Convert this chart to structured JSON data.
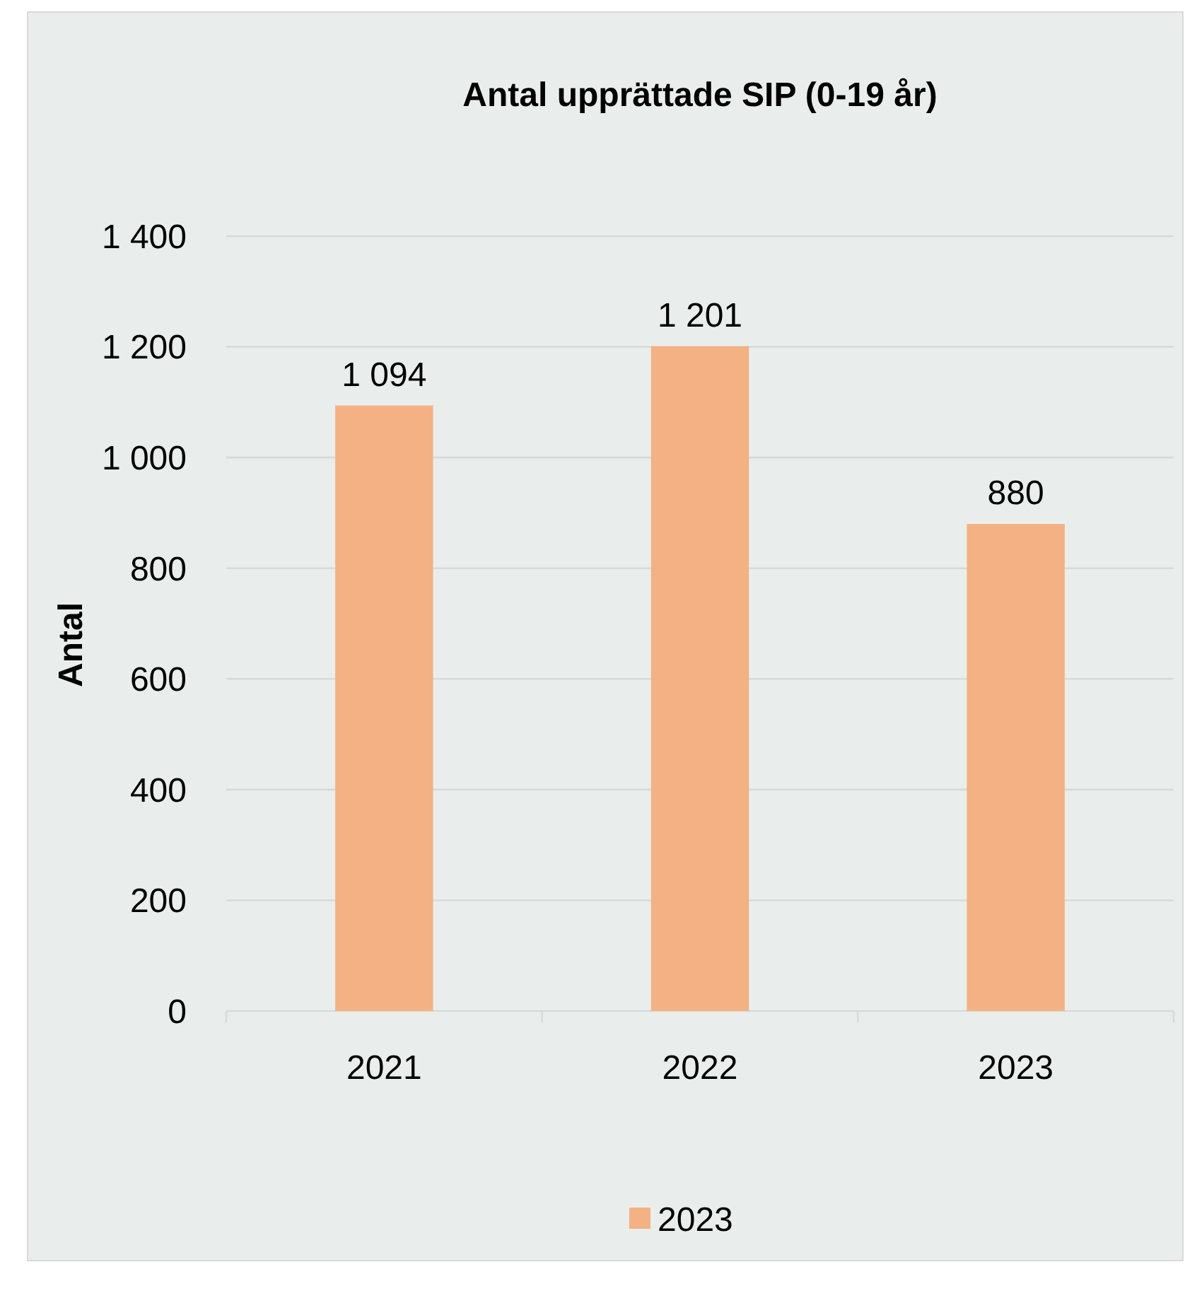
{
  "chart_data": {
    "type": "bar",
    "title": "Antal upprättade SIP (0-19 år)",
    "ylabel": "Antal",
    "categories": [
      "2021",
      "2022",
      "2023"
    ],
    "series": [
      {
        "name": "2023",
        "color": "#f4b183",
        "values": [
          1094,
          1201,
          880
        ],
        "value_labels": [
          "1 094",
          "1 201",
          "880"
        ]
      }
    ],
    "ylim": [
      0,
      1400
    ],
    "yticks": [
      0,
      200,
      400,
      600,
      800,
      {
        "value": 1000,
        "label": "1 000"
      },
      {
        "value": 1200,
        "label": "1 200"
      },
      {
        "value": 1400,
        "label": "1 400"
      }
    ],
    "grid": "y",
    "legend": "bottom"
  }
}
